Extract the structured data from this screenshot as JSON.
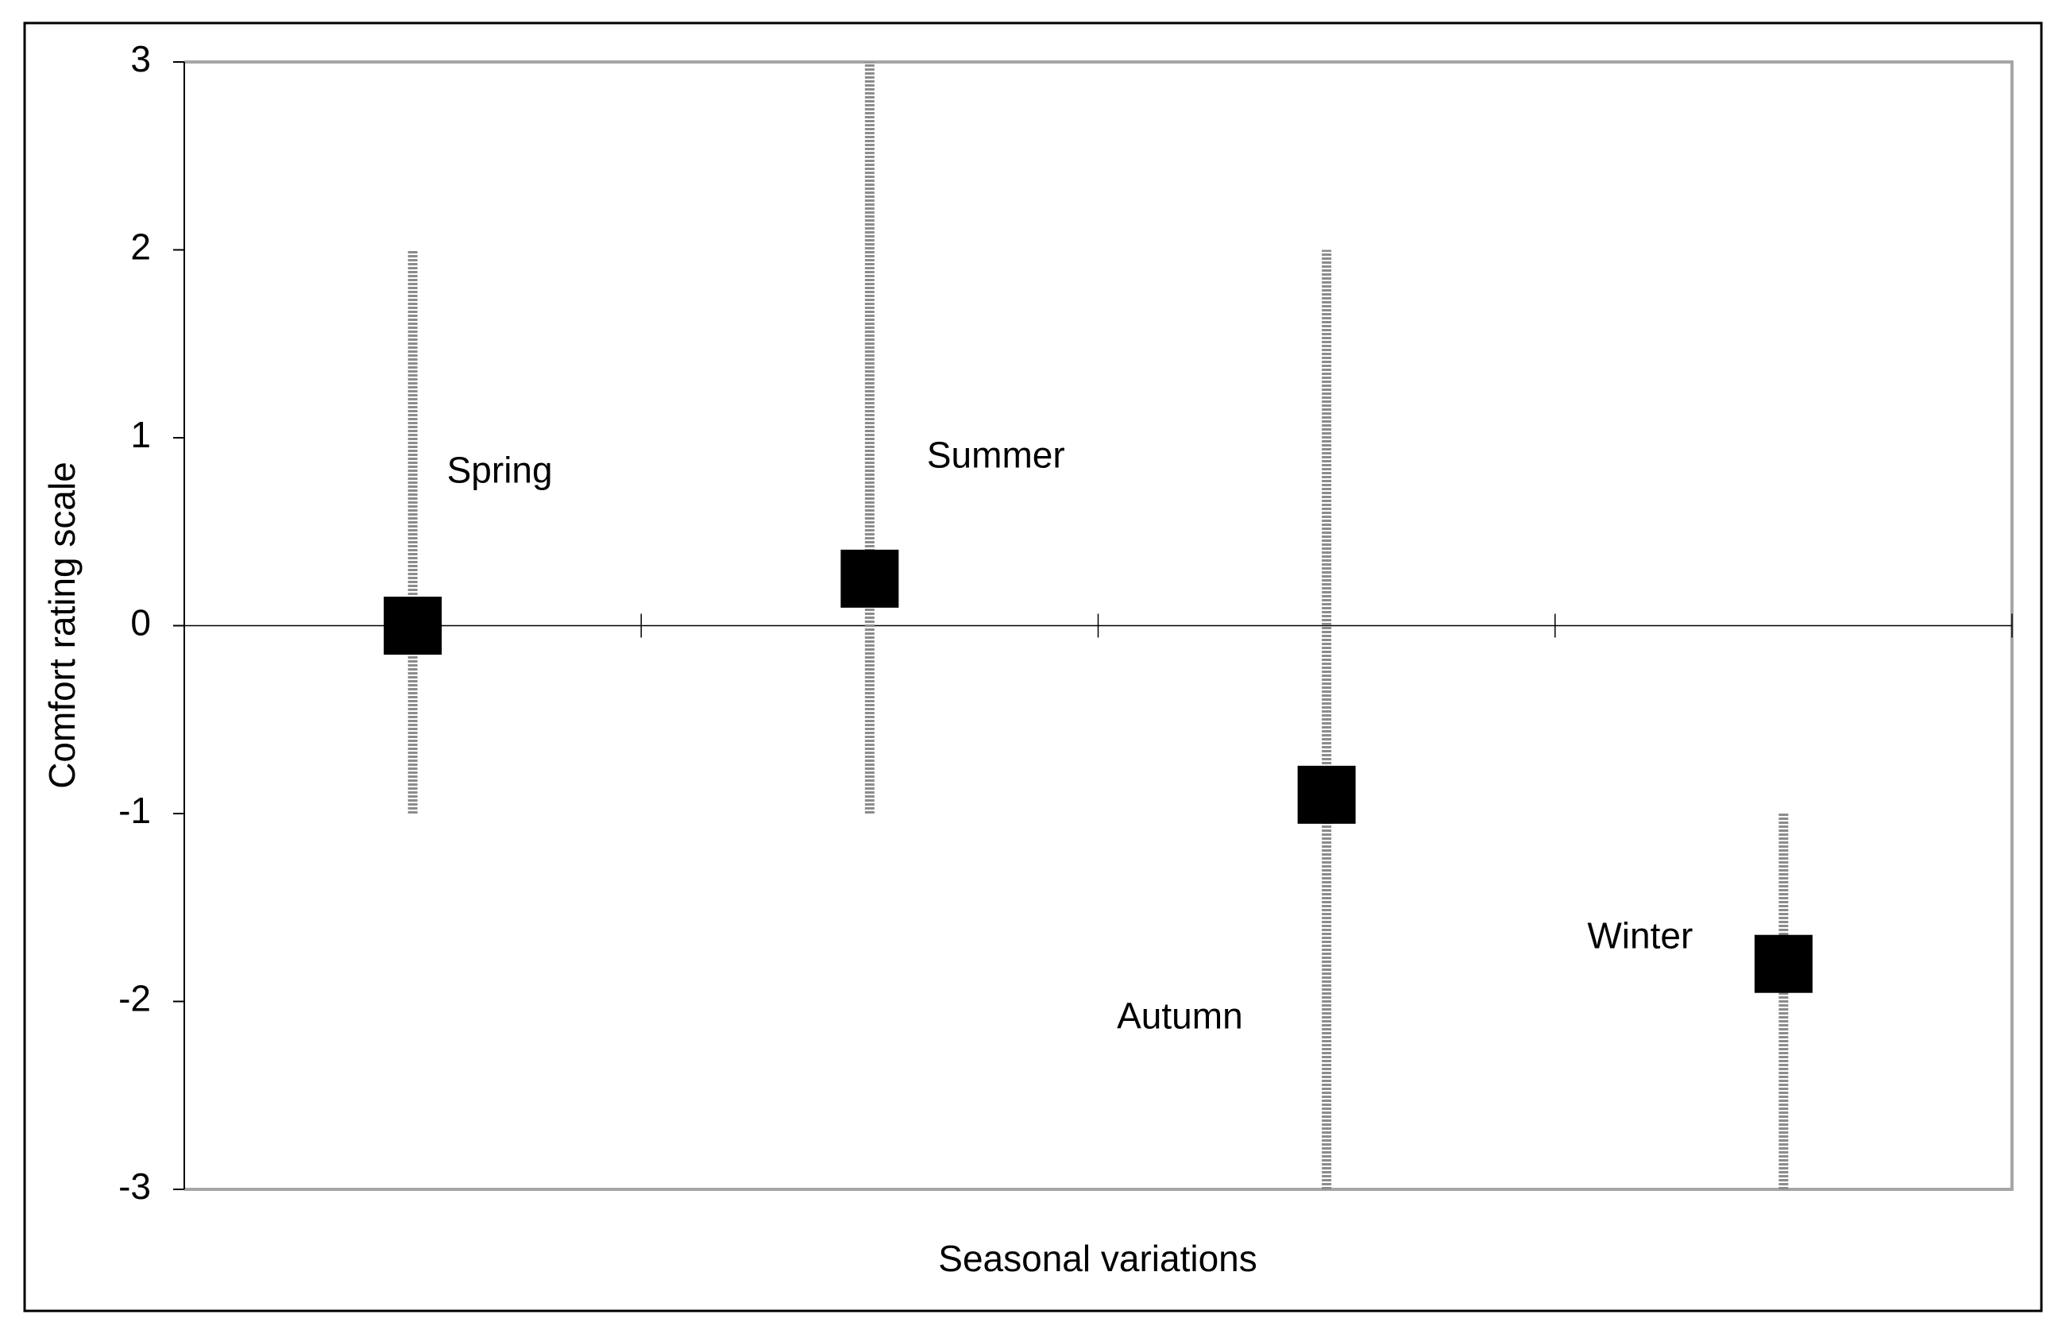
{
  "chart_data": {
    "type": "scatter",
    "x_label": "Seasonal variations",
    "y_label": "Comfort rating scale",
    "categories": [
      "Spring",
      "Summer",
      "Autumn",
      "Winter"
    ],
    "values": [
      0,
      0.25,
      -0.9,
      -1.8
    ],
    "low": [
      -1,
      -1,
      -3,
      -3
    ],
    "high": [
      2,
      3,
      2,
      -1
    ],
    "color": "#000000",
    "range_color": "#8c8c8c",
    "ylim": [
      -3,
      3
    ],
    "yticks": [
      -3,
      -2,
      -1,
      0,
      1,
      2,
      3
    ]
  }
}
